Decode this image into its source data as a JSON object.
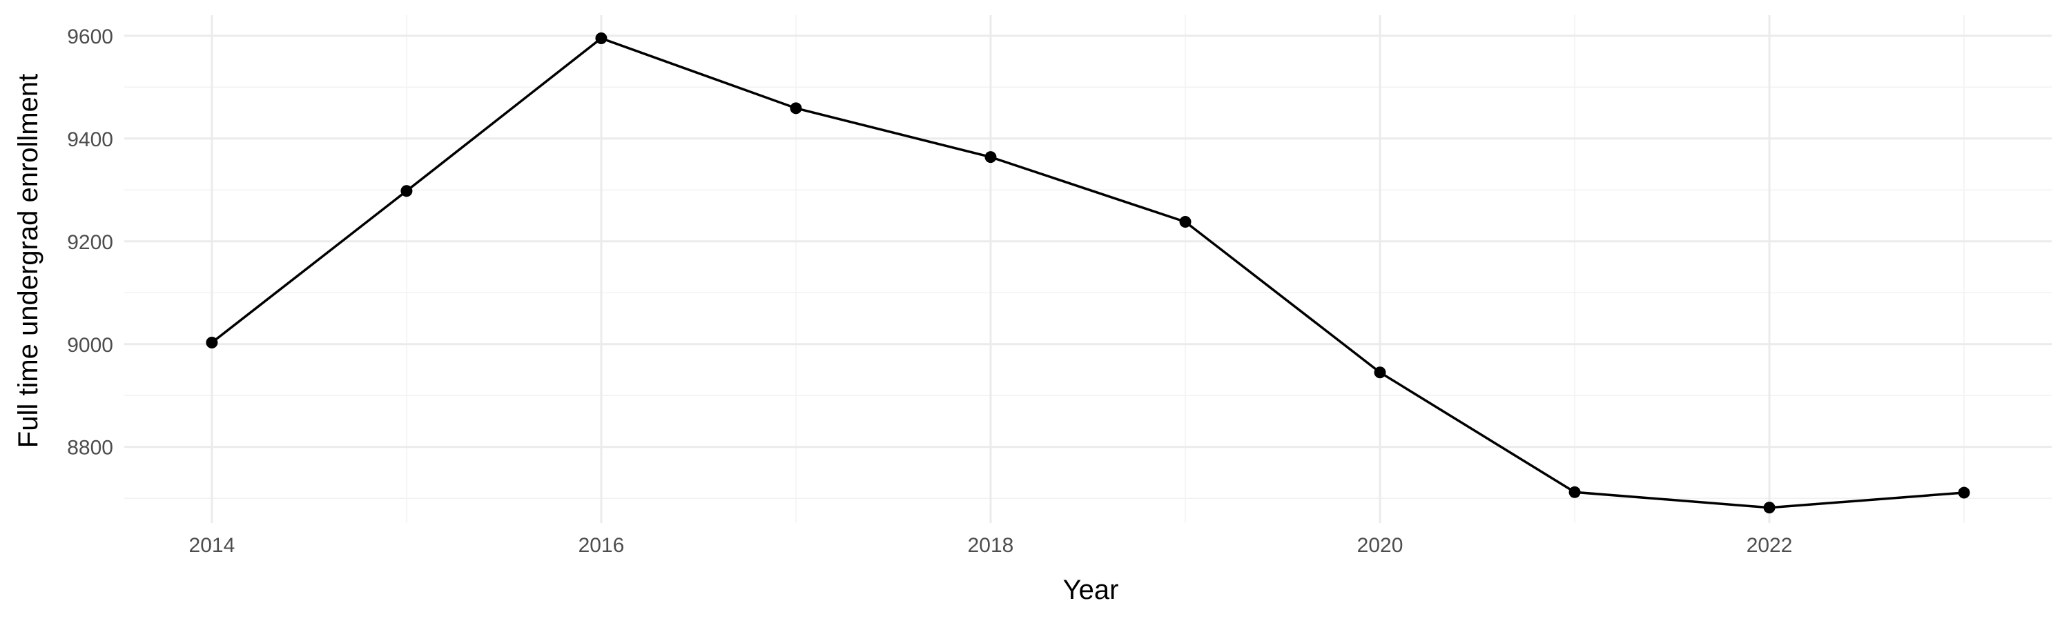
{
  "chart_data": {
    "type": "line",
    "title": "",
    "xlabel": "Year",
    "ylabel": "Full time undergrad enrollment",
    "x": [
      2014,
      2015,
      2016,
      2017,
      2018,
      2019,
      2020,
      2021,
      2022,
      2023
    ],
    "series": [
      {
        "name": "",
        "values": [
          9003,
          9298,
          9595,
          9459,
          9364,
          9238,
          8945,
          8712,
          8682,
          8711
        ],
        "color": "#000000"
      }
    ],
    "xlim": [
      2013.55,
      2023.45
    ],
    "ylim": [
      8652,
      9640
    ],
    "x_ticks": [
      "2014",
      "2016",
      "2018",
      "2020",
      "2022"
    ],
    "y_ticks": [
      "8800",
      "9000",
      "9200",
      "9400",
      "9600"
    ],
    "grid": true,
    "legend": "none"
  }
}
